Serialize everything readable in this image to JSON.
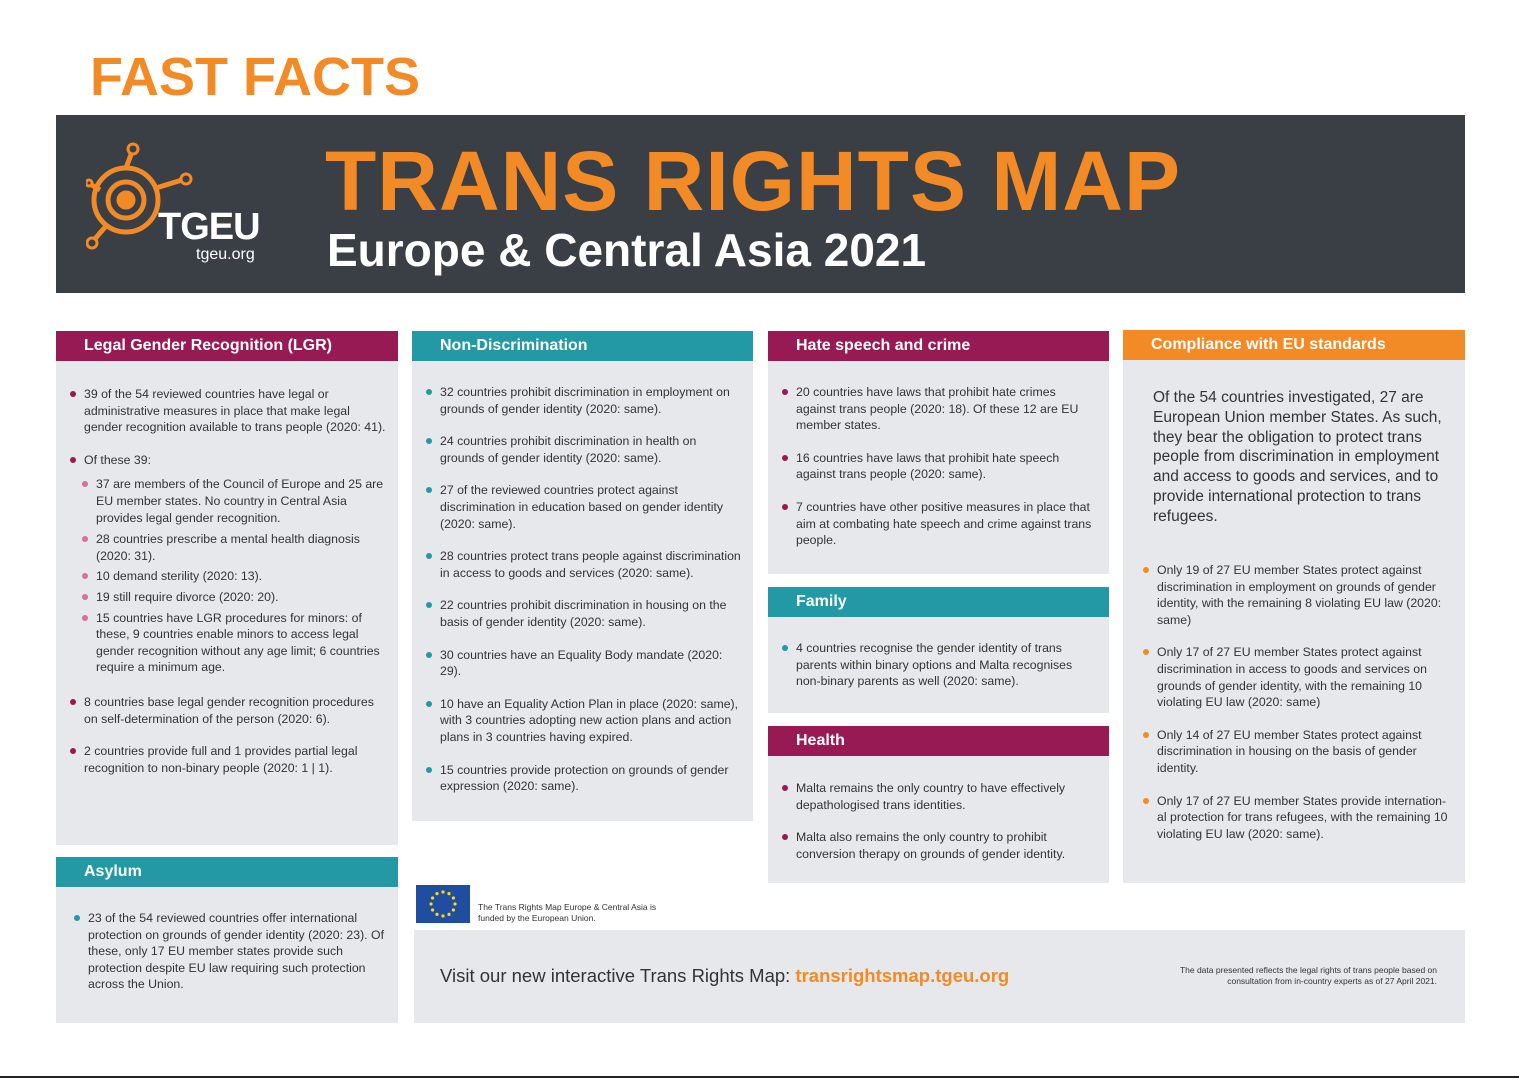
{
  "header": {
    "kicker": "FAST FACTS",
    "title": "TRANS RIGHTS MAP",
    "subtitle": "Europe & Central Asia 2021",
    "logo_name": "TGEU",
    "logo_url": "tgeu.org"
  },
  "colors": {
    "orange": "#F28A25",
    "magenta": "#981A54",
    "teal": "#2399A5",
    "banner": "#3A3E45",
    "panel": "#E7E8EB"
  },
  "lgr": {
    "title": "Legal Gender Recognition (LGR)",
    "items": [
      "39 of the 54 reviewed countries have legal or administrative measures in place that make legal gender recognition available to trans people (2020: 41).",
      "Of these 39:",
      "37 are members of the Council of Europe and 25 are EU member states. No country in Central Asia provides legal gender recognition.",
      "28 countries prescribe a mental health diagnosis (2020: 31).",
      "10 demand sterility (2020: 13).",
      "19 still require divorce (2020: 20).",
      "15 countries have LGR procedures for minors: of these, 9 countries enable minors to access legal gender recognition without any age limit; 6 countries require a minimum age.",
      "8 countries base legal gender recognition procedures on self-determination of the person (2020: 6).",
      "2 countries provide full and 1 provides partial legal recognition to non-binary people (2020: 1 | 1)."
    ]
  },
  "asylum": {
    "title": "Asylum",
    "items": [
      "23 of the 54 reviewed countries offer international protection on grounds of gender identity (2020: 23). Of these, only 17 EU member states provide such protection despite EU law requiring such protection across the Union."
    ]
  },
  "nondiscrimination": {
    "title": "Non-Discrimination",
    "items": [
      "32 countries prohibit discrimination in employment on grounds of gender identity (2020: same).",
      "24 countries prohibit discrimination in health on grounds of gender identity (2020: same).",
      "27 of the reviewed countries protect against discrimination in education based on gender identity (2020: same).",
      "28 countries protect trans people against discrimination in access to goods and services (2020: same).",
      "22 countries prohibit discrimination in housing on the basis of gender identity (2020: same).",
      "30 countries have an Equality Body mandate (2020: 29).",
      "10 have an Equality Action Plan in place (2020: same), with 3 countries adopting new action plans and action plans in 3 countries having expired.",
      "15 countries provide protection on grounds of gender expression (2020: same)."
    ]
  },
  "hate": {
    "title": "Hate speech and crime",
    "items": [
      "20 countries have laws that prohibit hate crimes against trans people (2020: 18). Of these 12 are EU member states.",
      "16 countries have laws that prohibit hate speech against trans people (2020: same).",
      "7 countries have other positive measures in place that aim at combating hate speech and crime against trans people."
    ]
  },
  "family": {
    "title": "Family",
    "items": [
      "4 countries recognise the gender identity of trans parents within binary options and Malta recognises non-binary parents as well (2020: same)."
    ]
  },
  "health": {
    "title": "Health",
    "items": [
      "Malta remains the only country to have effectively depathologised trans identities.",
      "Malta also remains the only country to prohibit conversion therapy on grounds of gender identity."
    ]
  },
  "eu": {
    "title": "Compliance with EU standards",
    "intro": "Of the 54 countries investigated, 27 are European Union member States. As such, they bear the obligation to protect trans people from discrimination in employment and access to goods and services, and to provide international protection to trans refugees.",
    "items": [
      "Only 19 of 27 EU member States protect against discrimination in employment on grounds of gender identity, with the remaining 8 violating EU law (2020: same)",
      "Only 17 of 27 EU member States protect against discrimination in access to goods and services on grounds of gender identity, with the remaining 10 violating EU law (2020: same)",
      "Only 14 of 27 EU member States protect against discrimination in housing on the basis of gender identity.",
      "Only 17 of 27 EU member States provide internation-al protection for trans refugees, with the remaining 10 violating EU law (2020: same)."
    ]
  },
  "footer": {
    "funding_note": "The Trans Rights Map Europe & Central Asia is funded by the European Union.",
    "visit_text": "Visit our new interactive Trans Rights Map: ",
    "visit_link": "transrightsmap.tgeu.org",
    "data_note": "The data presented reflects the legal rights of trans people based on consultation from in-country experts as of 27 April 2021."
  }
}
